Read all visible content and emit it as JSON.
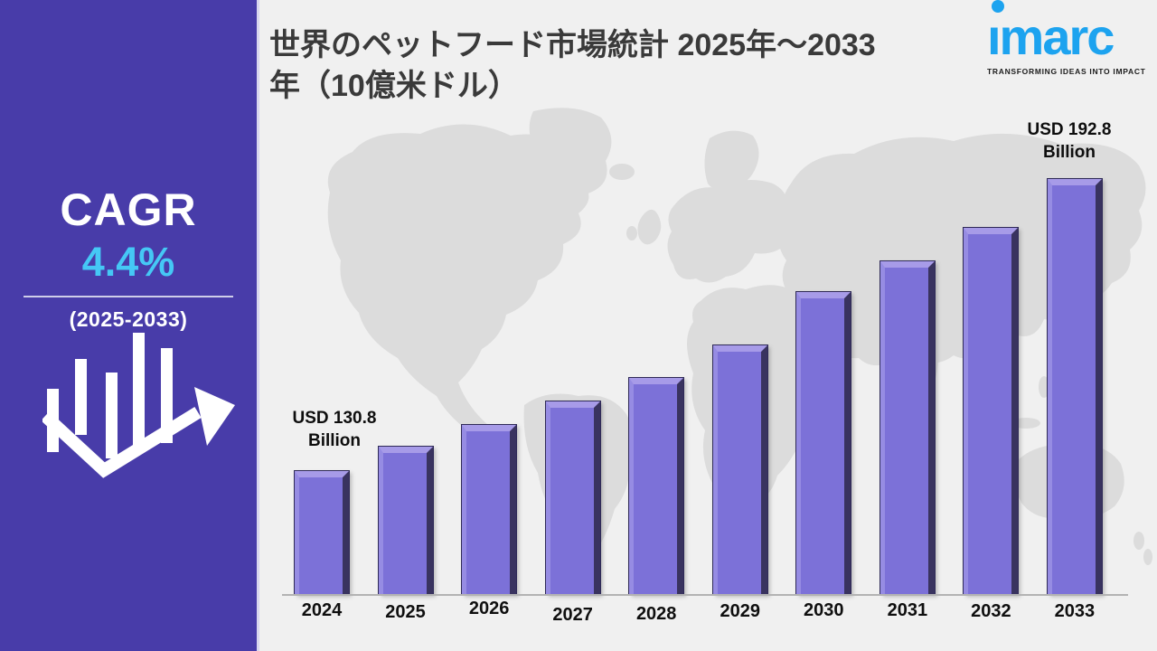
{
  "page": {
    "background": "#f0f0f0"
  },
  "sidebar": {
    "background": "#483CA9",
    "cagr_label": "CAGR",
    "cagr_value": "4.4%",
    "cagr_value_color": "#45C8F5",
    "cagr_period": "(2025-2033)",
    "icon": "bar-chart-growth-arrow-icon"
  },
  "header": {
    "title_line1": "世界のペットフード市場統計 2025年～2033",
    "title_line2": "年（10億米ドル）"
  },
  "logo": {
    "name": "imarc",
    "tagline": "TRANSFORMING IDEAS INTO IMPACT",
    "color": "#1da3ef"
  },
  "chart_data": {
    "type": "bar",
    "title": "世界のペットフード市場統計 2025年～2033年（10億米ドル）",
    "unit": "USD Billion",
    "categories": [
      "2024",
      "2025",
      "2026",
      "2027",
      "2028",
      "2029",
      "2030",
      "2031",
      "2032",
      "2033"
    ],
    "values": [
      130.8,
      136.0,
      140.6,
      145.6,
      150.6,
      157.5,
      168.8,
      175.4,
      182.5,
      192.8
    ],
    "labeled_points": {
      "2024": 130.8,
      "2033": 192.8
    },
    "annotations": [
      {
        "target": "2024",
        "text": "USD 130.8 Billion",
        "position": "above-first-bar"
      },
      {
        "target": "2033",
        "text": "USD 192.8 Billion",
        "position": "above-last-bar"
      }
    ],
    "bar_color": "#7C71D8",
    "bar_bevel_light": "#A79BE8",
    "bar_bevel_dark": "#39335F",
    "x_axis": {
      "line_color": "#b3b3b3",
      "labels_bold": true
    },
    "y_axis": {
      "visible": false,
      "baseline_value": 104.5,
      "top_value": 192.8
    },
    "legend": "none",
    "grid": "off",
    "background_decoration": "world-map-silhouette"
  }
}
